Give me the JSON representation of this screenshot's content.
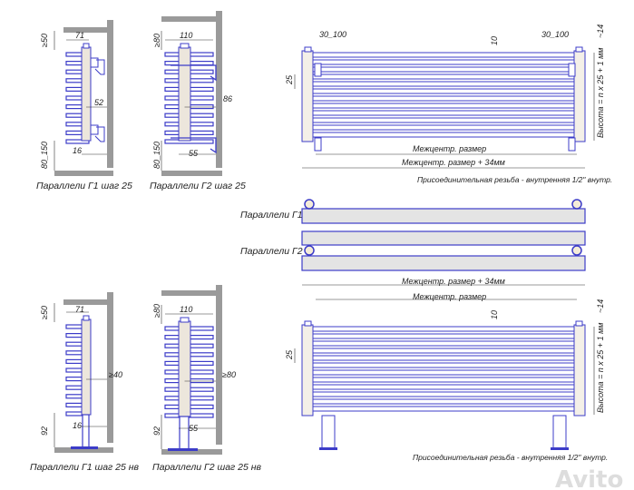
{
  "colors": {
    "outline": "#3c3cc8",
    "wall": "#9a9a9a",
    "fill": "#e4e4e4",
    "pipe": "#ece6dc",
    "dim_line": "#333333"
  },
  "side_views": [
    {
      "label": "Параллели Г1 шаг 25",
      "top_clearance": "≥50",
      "depth": "71",
      "wall_gap": "52",
      "offset": "16",
      "floor_clearance": "80_150"
    },
    {
      "label": "Параллели Г2 шаг 25",
      "top_clearance": "≥80",
      "depth": "110",
      "wall_gap": "86",
      "offset": "55",
      "floor_clearance": "80_150"
    },
    {
      "label": "Параллели Г1 шаг 25 нв",
      "top_clearance": "≥50",
      "depth": "71",
      "wall_gap": "≥40",
      "offset": "16",
      "floor_clearance": "92"
    },
    {
      "label": "Параллели Г2 шаг 25 нв",
      "top_clearance": "≥80",
      "depth": "110",
      "wall_gap": "≥80",
      "offset": "55",
      "floor_clearance": "92"
    }
  ],
  "front_wall": {
    "bracket_offset_left": "30_100",
    "bracket_offset_right": "30_100",
    "gap": "10",
    "pitch": "25",
    "top_offset": "~14",
    "height_formula": "Высота = n x 25 + 1 мм",
    "center_distance": "Межцентр. размер",
    "overall": "Межцентр. размер + 34мм",
    "thread_note": "Присоединительная резьба - внутренняя 1/2\" внутр."
  },
  "top_views": [
    {
      "label": "Параллели Г1"
    },
    {
      "label": "Параллели Г2"
    }
  ],
  "front_floor": {
    "overall": "Межцентр. размер + 34мм",
    "center_distance": "Межцентр. размер",
    "gap": "10",
    "pitch": "25",
    "top_offset": "~14",
    "height_formula": "Высота = n x 25 + 1 мм",
    "thread_note": "Присоединительная резьба - внутренняя 1/2\" внутр."
  },
  "watermark": "Avito"
}
